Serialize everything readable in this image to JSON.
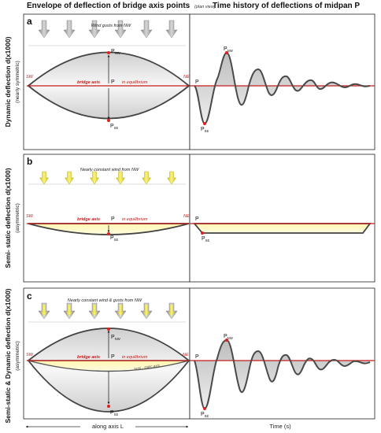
{
  "headers": {
    "left": "Envelope of deflection of bridge axis points",
    "left_note": "(plan view)",
    "right": "Time history of deflections of midpan P"
  },
  "panels": [
    {
      "letter": "a",
      "wind_text": "Wind gusts from NW",
      "ylabel": "Dynamic deflection d(x1000)",
      "ysub": "(nearly symmetric)",
      "sw": "SW",
      "ne": "NE",
      "bridge_axis": "bridge axis",
      "equilibrium": "in equilibrium",
      "p": "P",
      "p_nw": "P",
      "p_nw_sub": "NW",
      "p_se": "P",
      "p_se_sub": "SE",
      "time_p": "P",
      "time_pnw": "P",
      "time_pnw_sub": "NW",
      "time_pse": "P",
      "time_pse_sub": "SE"
    },
    {
      "letter": "b",
      "wind_text": "Nearly constant wind from NW",
      "ylabel": "Semi- static deflection d(x1000)",
      "ysub": "(asymmetric)",
      "sw": "SW",
      "ne": "NE",
      "bridge_axis": "bridge axis",
      "equilibrium": "in equilibrium",
      "p": "P",
      "p_se": "P",
      "p_se_sub": "SE",
      "time_p": "P",
      "time_pse": "P",
      "time_pse_sub": "SE"
    },
    {
      "letter": "c",
      "wind_text": "Nearly constant wind & gusts from NW",
      "ylabel": "Semi-static & Dynamic deflection d(x1000)",
      "ysub": "(asymmetric)",
      "sw": "SW",
      "ne": "NE",
      "bridge_axis": "bridge axis",
      "equilibrium": "in equilibrium",
      "semi_static_axis": "semi - static axis",
      "p": "P",
      "p_nw": "P",
      "p_nw_sub": "NW",
      "p_se": "P",
      "p_se_sub": "SE",
      "time_p": "P",
      "time_pnw": "P",
      "time_pnw_sub": "NW",
      "time_pse": "P",
      "time_pse_sub": "SE"
    }
  ],
  "footer": {
    "along_axis": "along axis L",
    "time": "Time (s)"
  },
  "colors": {
    "axis_red": "#c51b1b",
    "arrow_gray": "#a9a9a9",
    "arrow_yellow": "#f2e74a",
    "envelope_fill": "#dcdcdc",
    "static_fill": "#fbf4b6",
    "curve_stroke": "#4a4a4a",
    "marker": "#e02020"
  }
}
